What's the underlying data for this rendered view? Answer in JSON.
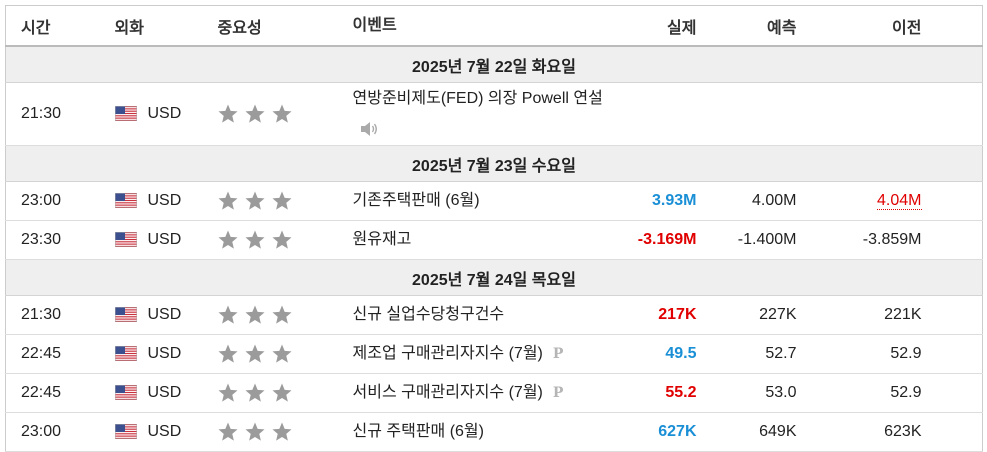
{
  "header": {
    "columns": [
      "시간",
      "외화",
      "중요성",
      "이벤트",
      "실제",
      "예측",
      "이전"
    ]
  },
  "sections": [
    {
      "date": "2025년 7월 22일 화요일",
      "events": [
        {
          "time": "21:30",
          "currency": "USD",
          "importance": 3,
          "event": "연방준비제도(FED) 의장 Powell 연설",
          "speech": true
        }
      ]
    },
    {
      "date": "2025년 7월 23일 수요일",
      "events": [
        {
          "time": "23:00",
          "currency": "USD",
          "importance": 3,
          "event": "기존주택판매 (6월)",
          "actual": "3.93M",
          "actual_color": "#1a8fd6",
          "forecast": "4.00M",
          "previous": "4.04M",
          "previous_color": "#e00000",
          "previous_revised": true
        },
        {
          "time": "23:30",
          "currency": "USD",
          "importance": 3,
          "event": "원유재고",
          "actual": "-3.169M",
          "actual_color": "#e00000",
          "forecast": "-1.400M",
          "previous": "-3.859M"
        }
      ]
    },
    {
      "date": "2025년 7월 24일 목요일",
      "events": [
        {
          "time": "21:30",
          "currency": "USD",
          "importance": 3,
          "event": "신규 실업수당청구건수",
          "actual": "217K",
          "actual_color": "#e00000",
          "forecast": "227K",
          "previous": "221K"
        },
        {
          "time": "22:45",
          "currency": "USD",
          "importance": 3,
          "event": "제조업 구매관리자지수 (7월)",
          "badge": "P",
          "actual": "49.5",
          "actual_color": "#1a8fd6",
          "forecast": "52.7",
          "previous": "52.9"
        },
        {
          "time": "22:45",
          "currency": "USD",
          "importance": 3,
          "event": "서비스 구매관리자지수 (7월)",
          "badge": "P",
          "actual": "55.2",
          "actual_color": "#e00000",
          "forecast": "53.0",
          "previous": "52.9"
        },
        {
          "time": "23:00",
          "currency": "USD",
          "importance": 3,
          "event": "신규 주택판매 (6월)",
          "actual": "627K",
          "actual_color": "#1a8fd6",
          "forecast": "649K",
          "previous": "623K"
        }
      ]
    }
  ]
}
